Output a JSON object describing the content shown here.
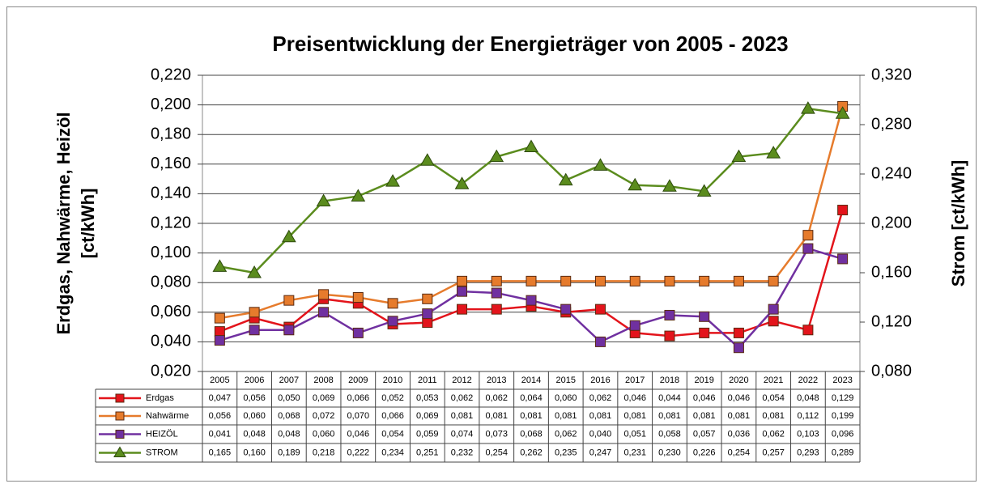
{
  "chart_data": {
    "type": "line",
    "title": "Preisentwicklung der Energieträger von 2005 - 2023",
    "ylabel": [
      "Erdgas, Nahwärme, Heizöl",
      "[ct/kWh]"
    ],
    "y2label": "Strom [ct/kWh]",
    "categories": [
      "2005",
      "2006",
      "2007",
      "2008",
      "2009",
      "2010",
      "2011",
      "2012",
      "2013",
      "2014",
      "2015",
      "2016",
      "2017",
      "2018",
      "2019",
      "2020",
      "2021",
      "2022",
      "2023"
    ],
    "ylim": [
      0.02,
      0.22
    ],
    "yticks": [
      {
        "value": 0.22,
        "label": "0,220"
      },
      {
        "value": 0.2,
        "label": "0,200"
      },
      {
        "value": 0.18,
        "label": "0,180"
      },
      {
        "value": 0.16,
        "label": "0,160"
      },
      {
        "value": 0.14,
        "label": "0,140"
      },
      {
        "value": 0.12,
        "label": "0,120"
      },
      {
        "value": 0.1,
        "label": "0,100"
      },
      {
        "value": 0.08,
        "label": "0,080"
      },
      {
        "value": 0.06,
        "label": "0,060"
      },
      {
        "value": 0.04,
        "label": "0,040"
      },
      {
        "value": 0.02,
        "label": "0,020"
      }
    ],
    "y2lim": [
      0.08,
      0.32
    ],
    "y2ticks": [
      {
        "value": 0.32,
        "label": "0,320"
      },
      {
        "value": 0.28,
        "label": "0,280"
      },
      {
        "value": 0.24,
        "label": "0,240"
      },
      {
        "value": 0.2,
        "label": "0,200"
      },
      {
        "value": 0.16,
        "label": "0,160"
      },
      {
        "value": 0.12,
        "label": "0,120"
      },
      {
        "value": 0.08,
        "label": "0,080"
      }
    ],
    "grid": true,
    "series": [
      {
        "name": "Erdgas",
        "color": "#e3141b",
        "marker": "square",
        "values": [
          0.047,
          0.056,
          0.05,
          0.069,
          0.066,
          0.052,
          0.053,
          0.062,
          0.062,
          0.064,
          0.06,
          0.062,
          0.046,
          0.044,
          0.046,
          0.046,
          0.054,
          0.048,
          0.129
        ],
        "value_labels": [
          "0,047",
          "0,056",
          "0,050",
          "0,069",
          "0,066",
          "0,052",
          "0,053",
          "0,062",
          "0,062",
          "0,064",
          "0,060",
          "0,062",
          "0,046",
          "0,044",
          "0,046",
          "0,046",
          "0,054",
          "0,048",
          "0,129"
        ]
      },
      {
        "name": "Nahwärme",
        "color": "#e67b2c",
        "marker": "square",
        "values": [
          0.056,
          0.06,
          0.068,
          0.072,
          0.07,
          0.066,
          0.069,
          0.081,
          0.081,
          0.081,
          0.081,
          0.081,
          0.081,
          0.081,
          0.081,
          0.081,
          0.081,
          0.112,
          0.199
        ],
        "value_labels": [
          "0,056",
          "0,060",
          "0,068",
          "0,072",
          "0,070",
          "0,066",
          "0,069",
          "0,081",
          "0,081",
          "0,081",
          "0,081",
          "0,081",
          "0,081",
          "0,081",
          "0,081",
          "0,081",
          "0,081",
          "0,112",
          "0,199"
        ]
      },
      {
        "name": "HEIZÖL",
        "color": "#7030a0",
        "marker": "square",
        "values": [
          0.041,
          0.048,
          0.048,
          0.06,
          0.046,
          0.054,
          0.059,
          0.074,
          0.073,
          0.068,
          0.062,
          0.04,
          0.051,
          0.058,
          0.057,
          0.036,
          0.062,
          0.103,
          0.096
        ],
        "value_labels": [
          "0,041",
          "0,048",
          "0,048",
          "0,060",
          "0,046",
          "0,054",
          "0,059",
          "0,074",
          "0,073",
          "0,068",
          "0,062",
          "0,040",
          "0,051",
          "0,058",
          "0,057",
          "0,036",
          "0,062",
          "0,103",
          "0,096"
        ]
      },
      {
        "name": "STROM",
        "color": "#5b8c1e",
        "marker": "triangle",
        "axis": "y2",
        "values": [
          0.165,
          0.16,
          0.189,
          0.218,
          0.222,
          0.234,
          0.251,
          0.232,
          0.254,
          0.262,
          0.235,
          0.247,
          0.231,
          0.23,
          0.226,
          0.254,
          0.257,
          0.293,
          0.289
        ],
        "value_labels": [
          "0,165",
          "0,160",
          "0,189",
          "0,218",
          "0,222",
          "0,234",
          "0,251",
          "0,232",
          "0,254",
          "0,262",
          "0,235",
          "0,247",
          "0,231",
          "0,230",
          "0,226",
          "0,254",
          "0,257",
          "0,293",
          "0,289"
        ]
      }
    ]
  }
}
